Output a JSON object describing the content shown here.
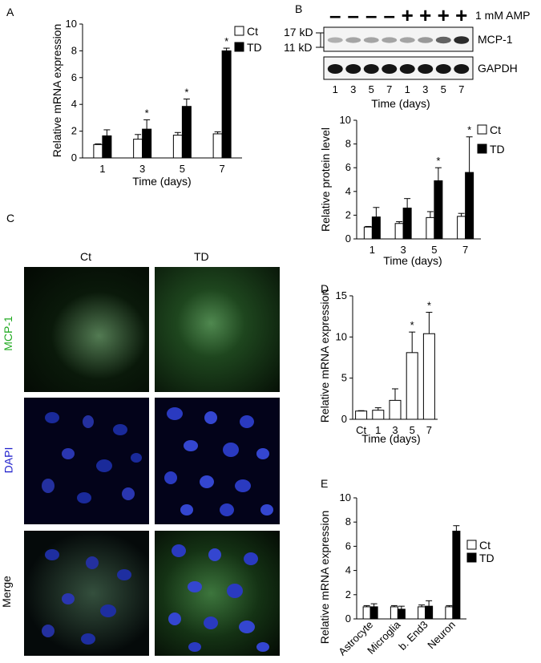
{
  "panel_letters": [
    "A",
    "B",
    "C",
    "D",
    "E"
  ],
  "legend": {
    "ct": "Ct",
    "td": "TD"
  },
  "star_marker": "*",
  "chart_data": [
    {
      "id": "A",
      "type": "bar",
      "ylabel": "Relative mRNA expression",
      "xlabel": "Time (days)",
      "ylim": [
        0,
        10
      ],
      "yticks": [
        0,
        2,
        4,
        6,
        8,
        10
      ],
      "categories": [
        "1",
        "3",
        "5",
        "7"
      ],
      "series": [
        {
          "name": "Ct",
          "values": [
            1.0,
            1.4,
            1.7,
            1.8
          ],
          "errors": [
            0.05,
            0.35,
            0.2,
            0.15
          ]
        },
        {
          "name": "TD",
          "values": [
            1.65,
            2.15,
            3.85,
            8.0
          ],
          "errors": [
            0.45,
            0.7,
            0.55,
            0.2
          ]
        }
      ],
      "significant": [
        false,
        true,
        true,
        true
      ]
    },
    {
      "id": "B",
      "type": "bar",
      "ylabel": "Relative protein level",
      "xlabel": "Time (days)",
      "ylim": [
        0,
        10
      ],
      "yticks": [
        0,
        2,
        4,
        6,
        8,
        10
      ],
      "categories": [
        "1",
        "3",
        "5",
        "7"
      ],
      "series": [
        {
          "name": "Ct",
          "values": [
            1.0,
            1.3,
            1.8,
            1.9
          ],
          "errors": [
            0.05,
            0.15,
            0.5,
            0.25
          ]
        },
        {
          "name": "TD",
          "values": [
            1.85,
            2.6,
            4.9,
            5.6
          ],
          "errors": [
            0.8,
            0.8,
            1.1,
            3.0
          ]
        }
      ],
      "significant": [
        false,
        false,
        true,
        true
      ]
    },
    {
      "id": "D",
      "type": "bar",
      "ylabel": "Relative mRNA expression",
      "xlabel": "Time (days)",
      "ylim": [
        0,
        15
      ],
      "yticks": [
        0,
        5,
        10,
        15
      ],
      "categories": [
        "Ct",
        "1",
        "3",
        "5",
        "7"
      ],
      "series": [
        {
          "values": [
            1.0,
            1.1,
            2.3,
            8.1,
            10.4
          ],
          "errors": [
            0.05,
            0.3,
            1.4,
            2.5,
            2.6
          ]
        }
      ],
      "significant": [
        false,
        false,
        false,
        true,
        true
      ]
    },
    {
      "id": "E",
      "type": "bar",
      "ylabel": "Relative mRNA expression",
      "ylim": [
        0,
        10
      ],
      "yticks": [
        0,
        2,
        4,
        6,
        8,
        10
      ],
      "categories": [
        "Astrocyte",
        "Microglia",
        "b. End3",
        "Neuron"
      ],
      "series": [
        {
          "name": "Ct",
          "values": [
            1.0,
            1.0,
            1.0,
            1.0
          ],
          "errors": [
            0.1,
            0.1,
            0.15,
            0.1
          ]
        },
        {
          "name": "TD",
          "values": [
            1.0,
            0.8,
            1.05,
            7.25
          ],
          "errors": [
            0.25,
            0.25,
            0.45,
            0.45
          ]
        }
      ],
      "significant": [
        false,
        false,
        false,
        false
      ]
    }
  ],
  "blot": {
    "treatment_label": "1 mM AMP",
    "lane_signs": [
      "–",
      "–",
      "–",
      "–",
      "+",
      "+",
      "+",
      "+"
    ],
    "lane_labels": [
      "1",
      "3",
      "5",
      "7",
      "1",
      "3",
      "5",
      "7"
    ],
    "xlabel": "Time (days)",
    "markers": [
      "17 kD",
      "11 kD"
    ],
    "bands": [
      {
        "name": "MCP-1",
        "intensity": [
          0.25,
          0.3,
          0.3,
          0.3,
          0.3,
          0.35,
          0.6,
          0.85
        ]
      },
      {
        "name": "GAPDH",
        "intensity": [
          0.95,
          0.95,
          0.95,
          0.95,
          0.95,
          0.95,
          0.95,
          0.95
        ]
      }
    ]
  },
  "micrographs": {
    "columns": [
      "Ct",
      "TD"
    ],
    "rows": [
      {
        "label": "MCP-1",
        "color": "#22aa22"
      },
      {
        "label": "DAPI",
        "color": "#2222cc"
      },
      {
        "label": "Merge",
        "color": "#000000"
      }
    ]
  }
}
